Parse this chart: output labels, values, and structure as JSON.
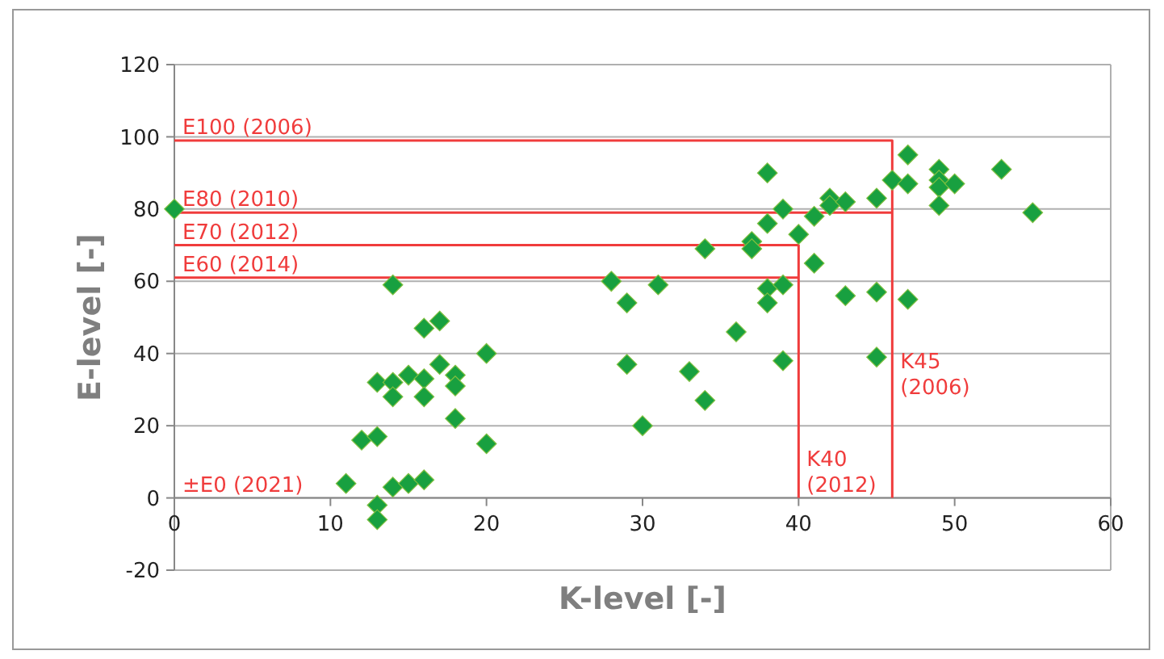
{
  "chart_data": {
    "type": "scatter",
    "xlabel": "K-level [-]",
    "ylabel": "E-level [-]",
    "xlim": [
      0,
      60
    ],
    "xticks": [
      0,
      10,
      20,
      30,
      40,
      50,
      60
    ],
    "ylim": [
      -20,
      120
    ],
    "yticks": [
      -20,
      0,
      20,
      40,
      60,
      80,
      100,
      120
    ],
    "grid": "y",
    "series": [
      {
        "marker": "diamond",
        "color": "#18a040",
        "x": [
          0,
          14,
          16,
          17,
          20,
          17,
          15,
          18,
          13,
          14,
          16,
          18,
          14,
          16,
          18,
          12,
          13,
          20,
          11,
          14,
          15,
          16,
          13,
          13,
          38,
          39,
          38,
          40,
          37,
          37,
          34,
          41,
          42,
          42,
          41,
          28,
          31,
          29,
          38,
          38,
          39,
          36,
          29,
          33,
          39,
          34,
          30,
          47,
          49,
          53,
          46,
          47,
          49,
          49,
          49,
          50,
          45,
          43,
          55,
          43,
          45,
          47,
          45
        ],
        "values": [
          80,
          59,
          47,
          49,
          40,
          37,
          34,
          34,
          32,
          32,
          33,
          31,
          28,
          28,
          22,
          16,
          17,
          15,
          4,
          3,
          4,
          5,
          -2,
          -6,
          90,
          80,
          76,
          73,
          71,
          69,
          69,
          78,
          83,
          81,
          65,
          60,
          59,
          54,
          58,
          54,
          59,
          46,
          37,
          35,
          38,
          27,
          20,
          95,
          91,
          91,
          88,
          87,
          88,
          86,
          81,
          87,
          83,
          82,
          79,
          56,
          57,
          55,
          39
        ]
      },
      {
        "type": "line",
        "marker": "none",
        "color": "#f03c3c",
        "x": [
          0,
          46,
          46
        ],
        "values": [
          99,
          99,
          0
        ]
      },
      {
        "type": "line",
        "marker": "none",
        "color": "#f03c3c",
        "x": [
          0,
          46
        ],
        "values": [
          79,
          79
        ]
      },
      {
        "type": "line",
        "marker": "none",
        "color": "#f03c3c",
        "x": [
          0,
          40,
          40
        ],
        "values": [
          70,
          70,
          0
        ]
      },
      {
        "type": "line",
        "marker": "none",
        "color": "#f03c3c",
        "x": [
          0,
          40
        ],
        "values": [
          61,
          61
        ]
      }
    ],
    "annotations": [
      {
        "text": "E100 (2006)",
        "x": 0,
        "y": 99
      },
      {
        "text": "E80 (2010)",
        "x": 0,
        "y": 79
      },
      {
        "text": "E70 (2012)",
        "x": 0,
        "y": 70
      },
      {
        "text": "E60 (2014)",
        "x": 0,
        "y": 61
      },
      "±E0 (2021)",
      {
        "text": "K40\n(2012)",
        "x": 40,
        "y": 0
      },
      {
        "text": "K45\n(2006)",
        "x": 46,
        "y": 27
      }
    ]
  }
}
